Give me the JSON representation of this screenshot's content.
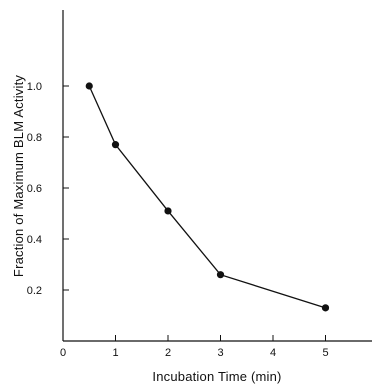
{
  "chart_data": {
    "type": "line",
    "title": "",
    "xlabel": "Incubation Time (min)",
    "ylabel": "Fraction of Maximum BLM Activity",
    "xlim": [
      0,
      6
    ],
    "ylim": [
      0,
      1.2
    ],
    "x_ticks": [
      0,
      1,
      2,
      3,
      4,
      5
    ],
    "x_tick_labels": [
      "0",
      "1",
      "2",
      "3",
      "4",
      "5"
    ],
    "y_ticks": [
      0.2,
      0.4,
      0.6,
      0.8,
      1.0
    ],
    "y_tick_labels": [
      "0.2",
      "0.4",
      "0.6",
      "0.8",
      "1.0"
    ],
    "grid": false,
    "legend": "none",
    "series": [
      {
        "x": [
          0.5,
          1,
          2,
          3,
          5
        ],
        "y": [
          1.0,
          0.77,
          0.51,
          0.26,
          0.13
        ]
      }
    ]
  }
}
